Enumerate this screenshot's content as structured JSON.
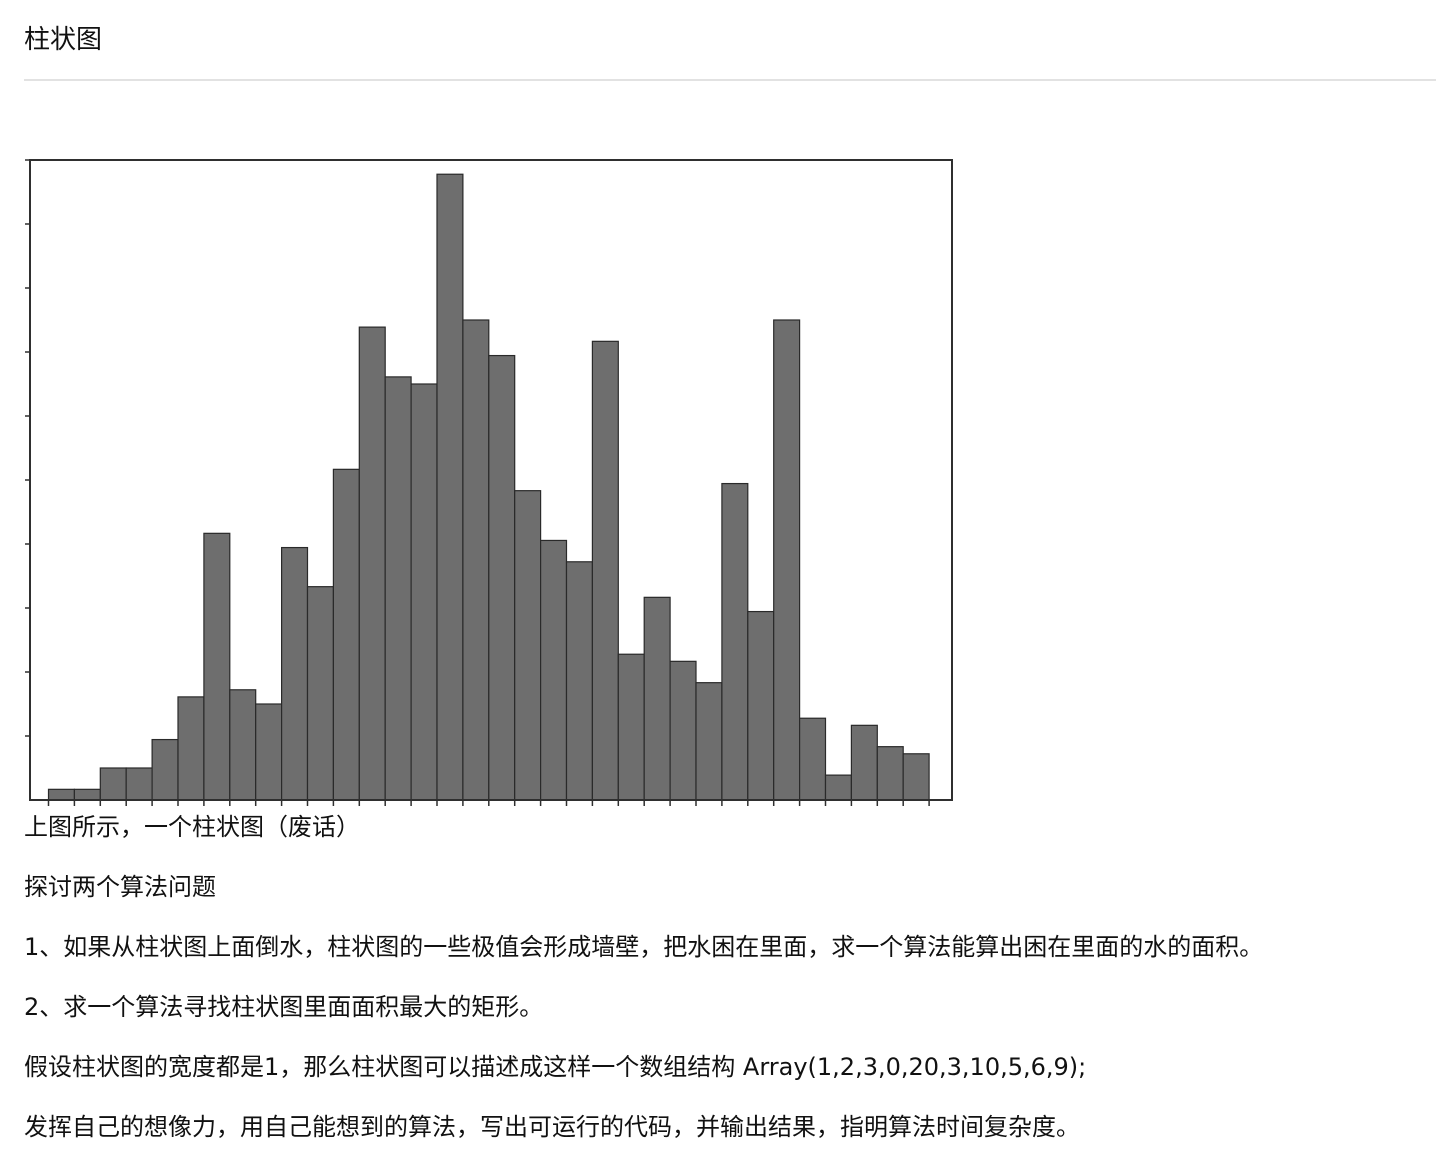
{
  "page": {
    "heading": "柱状图"
  },
  "article": {
    "caption": "上图所示，一个柱状图（废话）",
    "intro": "探讨两个算法问题",
    "question_1": "1、如果从柱状图上面倒水，柱状图的一些极值会形成墙壁，把水困在里面，求一个算法能算出困在里面的水的面积。",
    "question_2": "2、求一个算法寻找柱状图里面面积最大的矩形。",
    "assumption": "假设柱状图的宽度都是1，那么柱状图可以描述成这样一个数组结构 Array(1,2,3,0,20,3,10,5,6,9);",
    "task": "发挥自己的想像力，用自己能想到的算法，写出可运行的代码，并输出结果，指明算法时间复杂度。"
  },
  "chart_data": {
    "type": "bar",
    "title": "",
    "xlabel": "",
    "ylabel": "",
    "show_tick_labels": false,
    "grid": false,
    "ylim": [
      0,
      90
    ],
    "bar_color": "#6e6e6e",
    "bar_edge_color": "#2a2a2a",
    "values": [
      1.5,
      1.5,
      4.5,
      4.5,
      8.5,
      14.5,
      37.5,
      15.5,
      13.5,
      35.5,
      30,
      46.5,
      66.5,
      59.5,
      58.5,
      88,
      67.5,
      62.5,
      43.5,
      36.5,
      33.5,
      64.5,
      20.5,
      28.5,
      19.5,
      16.5,
      44.5,
      26.5,
      67.5,
      11.5,
      3.5,
      10.5,
      7.5,
      6.5
    ]
  }
}
